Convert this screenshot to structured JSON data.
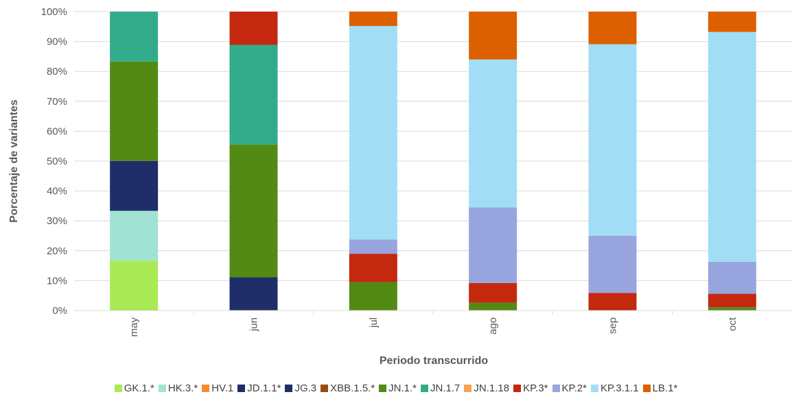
{
  "chart_data": {
    "type": "bar",
    "stacked": true,
    "percent": true,
    "title": "",
    "xlabel": "Periodo transcurrido",
    "ylabel": "Porcentaje de variantes",
    "ylim": [
      0,
      100
    ],
    "y_ticks": [
      "0%",
      "10%",
      "20%",
      "30%",
      "40%",
      "50%",
      "60%",
      "70%",
      "80%",
      "90%",
      "100%"
    ],
    "categories": [
      "may",
      "jun",
      "jul",
      "ago",
      "sep",
      "oct"
    ],
    "grid": true,
    "legend_position": "bottom",
    "series": [
      {
        "name": "GK.1.*",
        "color": "#a9ea55",
        "values": [
          16.7,
          0,
          0,
          0,
          0,
          0
        ]
      },
      {
        "name": "HK.3.*",
        "color": "#a0e3d4",
        "values": [
          16.7,
          0,
          0,
          0,
          0,
          0
        ]
      },
      {
        "name": "HV.1",
        "color": "#f68b2e",
        "values": [
          0,
          0,
          0,
          0,
          0,
          0
        ]
      },
      {
        "name": "JD.1.1*",
        "color": "#1f2d69",
        "values": [
          16.7,
          11.1,
          0,
          0,
          0,
          0
        ]
      },
      {
        "name": "JG.3",
        "color": "#1f2d69",
        "values": [
          0,
          0,
          0,
          0,
          0,
          0
        ]
      },
      {
        "name": "XBB.1.5.*",
        "color": "#a04a12",
        "values": [
          0,
          0,
          0,
          0,
          0,
          0
        ]
      },
      {
        "name": "JN.1.*",
        "color": "#538a13",
        "values": [
          33.3,
          44.4,
          9.5,
          2.6,
          0,
          1.1
        ]
      },
      {
        "name": "JN.1.7",
        "color": "#32ab8b",
        "values": [
          16.7,
          33.3,
          0,
          0,
          0,
          0
        ]
      },
      {
        "name": "JN.1.18",
        "color": "#f6a15a",
        "values": [
          0,
          0,
          0,
          0,
          0,
          0
        ]
      },
      {
        "name": "KP.3*",
        "color": "#c4280f",
        "values": [
          0,
          11.1,
          9.5,
          6.6,
          5.9,
          4.5
        ]
      },
      {
        "name": "KP.2*",
        "color": "#98a5de",
        "values": [
          0,
          0,
          4.8,
          25.3,
          19.1,
          10.7
        ]
      },
      {
        "name": "KP.3.1.1",
        "color": "#a1def6",
        "values": [
          0,
          0,
          71.4,
          49.5,
          64.1,
          76.9
        ]
      },
      {
        "name": "LB.1*",
        "color": "#dd6000",
        "values": [
          0,
          0,
          4.8,
          16.0,
          10.9,
          6.8
        ]
      }
    ]
  }
}
